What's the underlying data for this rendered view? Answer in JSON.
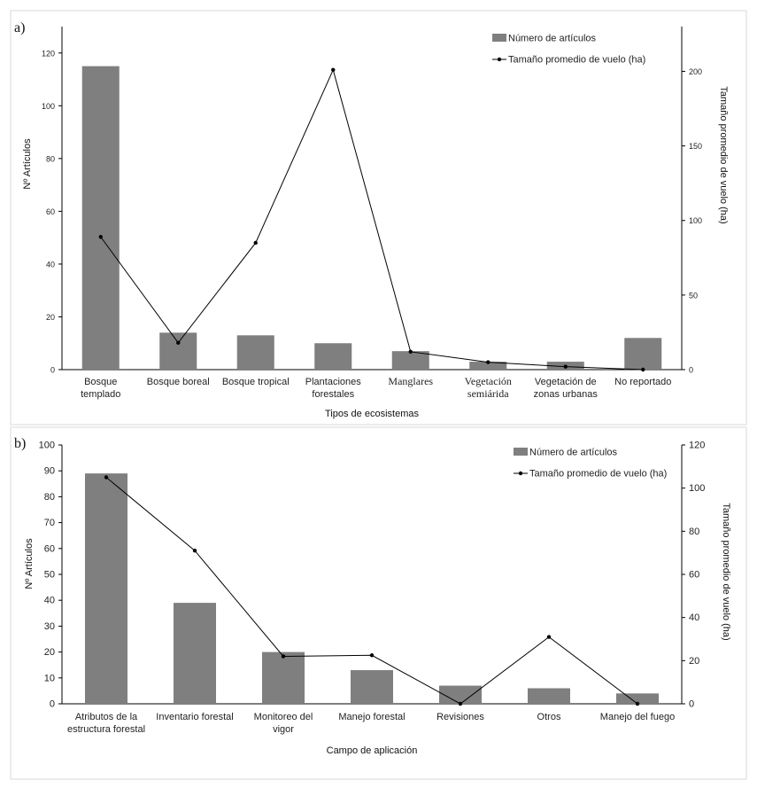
{
  "chart_data": [
    {
      "type": "bar",
      "panel_label": "a)",
      "categories": [
        [
          "Bosque",
          "templado"
        ],
        [
          "Bosque boreal"
        ],
        [
          "Bosque tropical"
        ],
        [
          "Plantaciones",
          "forestales"
        ],
        [
          "Manglares"
        ],
        [
          "Vegetación",
          "semiárida"
        ],
        [
          "Vegetación de",
          "zonas urbanas"
        ],
        [
          "No reportado"
        ]
      ],
      "series": [
        {
          "name": "Número de artículos",
          "type": "bar",
          "axis": "left",
          "values": [
            115,
            14,
            13,
            10,
            7,
            3,
            3,
            12
          ]
        },
        {
          "name": "Tamaño promedio de vuelo (ha)",
          "type": "line",
          "axis": "right",
          "values": [
            89,
            18,
            85,
            201,
            12,
            5,
            2,
            0
          ]
        }
      ],
      "xlabel": "Tipos de ecosistemas",
      "ylabel": "Nº Artículos",
      "ylabel_right": "Tamaño promedio de vuelo (ha)",
      "ylim": [
        0,
        130
      ],
      "ylim_right": [
        0,
        230
      ],
      "yticks": [
        0,
        20,
        40,
        60,
        80,
        100,
        120
      ],
      "yticks_right": [
        0,
        50,
        100,
        150,
        200
      ],
      "legend_position": "top-right"
    },
    {
      "type": "bar",
      "panel_label": "b)",
      "categories": [
        [
          "Atributos de la",
          "estructura forestal"
        ],
        [
          "Inventario forestal"
        ],
        [
          "Monitoreo del",
          "vigor"
        ],
        [
          "Manejo forestal"
        ],
        [
          "Revisiones"
        ],
        [
          "Otros"
        ],
        [
          "Manejo del fuego"
        ]
      ],
      "series": [
        {
          "name": "Número de artículos",
          "type": "bar",
          "axis": "left",
          "values": [
            89,
            39,
            20,
            13,
            7,
            6,
            4
          ]
        },
        {
          "name": "Tamaño promedio de vuelo (ha)",
          "type": "line",
          "axis": "right",
          "values": [
            105,
            71,
            22,
            22.5,
            0,
            31,
            0
          ]
        }
      ],
      "xlabel": "Campo de aplicación",
      "ylabel": "Nº Artículos",
      "ylabel_right": "Tamaño promedio de vuelo (ha)",
      "ylim": [
        0,
        100
      ],
      "ylim_right": [
        0,
        120
      ],
      "yticks": [
        0,
        10,
        20,
        30,
        40,
        50,
        60,
        70,
        80,
        90,
        100
      ],
      "yticks_right": [
        0,
        20,
        40,
        60,
        80,
        100,
        120
      ],
      "legend_position": "top-right"
    }
  ],
  "colors": {
    "bar": "#7f7f7f",
    "line": "#000000",
    "axis": "#000000",
    "frame": "#d9d9d9"
  }
}
